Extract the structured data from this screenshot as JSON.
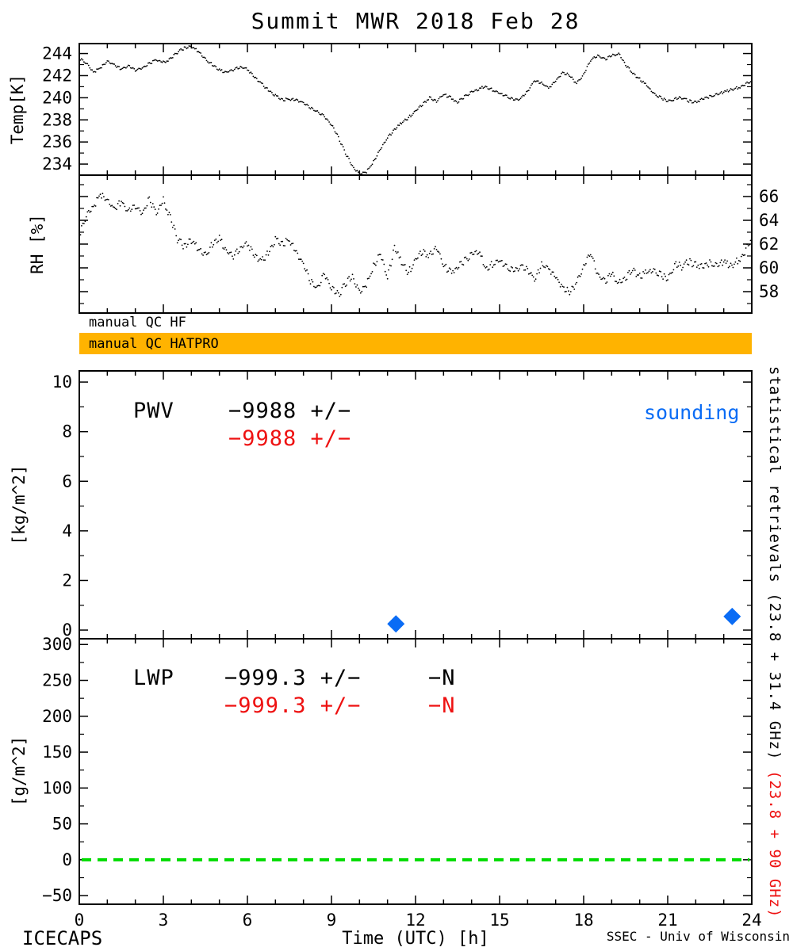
{
  "title": "Summit MWR 2018 Feb 28",
  "colors": {
    "accent_orange": "#FFB300",
    "sounding_blue": "#0A6CF5",
    "stat_red": "#EE1111",
    "zero_green": "#00DC00"
  },
  "qc": {
    "hf_label": "manual QC HF",
    "hatpro_label": "manual QC HATPRO"
  },
  "annotations": {
    "pwv_label": "PWV",
    "pwv_stat_black": "−9988 +/−",
    "pwv_stat_red": "−9988 +/−",
    "sounding_label": "sounding",
    "lwp_label": "LWP",
    "lwp_stat_black": "−999.3 +/−",
    "lwp_n_black": "−N",
    "lwp_stat_red": "−999.3 +/−",
    "lwp_n_red": "−N"
  },
  "right_margin": {
    "black": "statistical retrievals (23.8 + 31.4 GHz)",
    "red": " (23.8 + 90 GHz)"
  },
  "footer": {
    "left": "ICECAPS",
    "right": "SSEC - Univ of Wisconsin"
  },
  "x_axis": {
    "label": "Time (UTC) [h]",
    "vals": [
      0,
      3,
      6,
      9,
      12,
      15,
      18,
      21,
      24
    ],
    "labels": [
      "0",
      "3",
      "6",
      "9",
      "12",
      "15",
      "18",
      "21",
      "24"
    ]
  },
  "chart_data": [
    {
      "type": "line",
      "name": "temperature",
      "ylabel": "Temp[K]",
      "ytick_vals": [
        234,
        236,
        238,
        240,
        242,
        244
      ],
      "ytick_labels": [
        "234",
        "236",
        "238",
        "240",
        "242",
        "244"
      ],
      "ylim": [
        233.0,
        244.9
      ],
      "xlim": [
        0,
        24
      ],
      "x": [
        0,
        0.25,
        0.5,
        0.75,
        1,
        1.25,
        1.5,
        1.75,
        2,
        2.25,
        2.5,
        2.75,
        3,
        3.25,
        3.5,
        3.75,
        4,
        4.25,
        4.5,
        4.75,
        5,
        5.25,
        5.5,
        5.75,
        6,
        6.25,
        6.5,
        6.75,
        7,
        7.25,
        7.5,
        7.75,
        8,
        8.25,
        8.5,
        8.75,
        9,
        9.25,
        9.5,
        9.75,
        10,
        10.25,
        10.5,
        10.75,
        11,
        11.25,
        11.5,
        11.75,
        12,
        12.25,
        12.5,
        12.75,
        13,
        13.25,
        13.5,
        13.75,
        14,
        14.25,
        14.5,
        14.75,
        15,
        15.25,
        15.5,
        15.75,
        16,
        16.25,
        16.5,
        16.75,
        17,
        17.25,
        17.5,
        17.75,
        18,
        18.25,
        18.5,
        18.75,
        19,
        19.25,
        19.5,
        19.75,
        20,
        20.25,
        20.5,
        20.75,
        21,
        21.25,
        21.5,
        21.75,
        22,
        22.25,
        22.5,
        22.75,
        23,
        23.25,
        23.5,
        23.75,
        24
      ],
      "y": [
        243.6,
        243.1,
        242.3,
        242.7,
        243.3,
        243.0,
        242.6,
        242.9,
        242.5,
        242.7,
        243.1,
        243.4,
        243.2,
        243.5,
        244.1,
        244.5,
        244.6,
        244.2,
        243.5,
        243.0,
        242.5,
        242.3,
        242.5,
        242.8,
        242.6,
        241.9,
        241.3,
        240.7,
        240.2,
        239.8,
        239.9,
        239.8,
        239.5,
        239.1,
        238.7,
        238.3,
        237.6,
        236.4,
        235.0,
        233.8,
        233.1,
        233.3,
        234.2,
        235.4,
        236.4,
        237.1,
        237.7,
        238.2,
        238.8,
        239.4,
        240.0,
        239.7,
        240.3,
        240.0,
        239.6,
        240.1,
        240.5,
        240.8,
        241.0,
        240.7,
        240.4,
        240.1,
        239.8,
        239.9,
        240.6,
        241.6,
        241.3,
        240.9,
        241.5,
        242.3,
        242.0,
        241.3,
        242.1,
        243.4,
        243.8,
        243.5,
        243.8,
        244.0,
        243.0,
        242.2,
        241.7,
        241.1,
        240.4,
        240.0,
        239.7,
        239.9,
        240.0,
        239.7,
        239.6,
        239.9,
        240.1,
        240.3,
        240.5,
        240.7,
        240.9,
        241.2,
        241.5
      ]
    },
    {
      "type": "line",
      "name": "relative-humidity",
      "ylabel": "RH [%]",
      "ytick_vals": [
        58,
        60,
        62,
        64,
        66
      ],
      "ytick_labels": [
        "58",
        "60",
        "62",
        "64",
        "66"
      ],
      "ylim": [
        56.2,
        67.8
      ],
      "xlim": [
        0,
        24
      ],
      "x": [
        0,
        0.25,
        0.5,
        0.75,
        1,
        1.25,
        1.5,
        1.75,
        2,
        2.25,
        2.5,
        2.75,
        3,
        3.25,
        3.5,
        3.75,
        4,
        4.25,
        4.5,
        4.75,
        5,
        5.25,
        5.5,
        5.75,
        6,
        6.25,
        6.5,
        6.75,
        7,
        7.25,
        7.5,
        7.75,
        8,
        8.25,
        8.5,
        8.75,
        9,
        9.25,
        9.5,
        9.75,
        10,
        10.25,
        10.5,
        10.75,
        11,
        11.25,
        11.5,
        11.75,
        12,
        12.25,
        12.5,
        12.75,
        13,
        13.25,
        13.5,
        13.75,
        14,
        14.25,
        14.5,
        14.75,
        15,
        15.25,
        15.5,
        15.75,
        16,
        16.25,
        16.5,
        16.75,
        17,
        17.25,
        17.5,
        17.75,
        18,
        18.25,
        18.5,
        18.75,
        19,
        19.25,
        19.5,
        19.75,
        20,
        20.25,
        20.5,
        20.75,
        21,
        21.25,
        21.5,
        21.75,
        22,
        22.25,
        22.5,
        22.75,
        23,
        23.25,
        23.5,
        23.75,
        24
      ],
      "y": [
        62.8,
        64.3,
        65.1,
        66.2,
        65.7,
        65.0,
        65.6,
        64.8,
        65.2,
        64.6,
        65.8,
        64.5,
        65.7,
        64.2,
        62.4,
        61.8,
        62.3,
        61.6,
        61.1,
        62.0,
        62.5,
        61.4,
        60.9,
        61.7,
        62.1,
        61.1,
        60.6,
        61.3,
        62.4,
        62.0,
        62.4,
        61.3,
        60.2,
        58.9,
        58.2,
        59.5,
        58.4,
        57.7,
        58.7,
        59.3,
        57.9,
        58.6,
        60.1,
        61.3,
        59.2,
        61.7,
        60.4,
        59.6,
        60.7,
        61.4,
        61.0,
        61.8,
        60.2,
        59.6,
        60.1,
        60.6,
        61.1,
        61.5,
        59.9,
        60.3,
        60.6,
        60.0,
        59.7,
        60.1,
        59.9,
        59.1,
        60.2,
        60.0,
        59.2,
        58.4,
        57.9,
        58.8,
        60.1,
        61.3,
        59.4,
        58.9,
        59.5,
        58.7,
        59.2,
        59.8,
        59.3,
        59.6,
        59.8,
        59.4,
        59.1,
        60.3,
        60.1,
        60.5,
        60.3,
        60.1,
        60.4,
        60.2,
        60.5,
        60.1,
        60.6,
        61.3,
        62.5
      ]
    },
    {
      "type": "scatter",
      "name": "pwv",
      "ylabel": "[kg/m^2]",
      "ytick_vals": [
        0,
        2,
        4,
        6,
        8,
        10
      ],
      "ytick_labels": [
        "0",
        "2",
        "4",
        "6",
        "8",
        "10"
      ],
      "ylim": [
        -0.35,
        10.45
      ],
      "xlim": [
        0,
        24
      ],
      "series": [
        {
          "name": "sounding",
          "marker": "diamond",
          "color": "#0A6CF5",
          "x": [
            11.3,
            23.3
          ],
          "y": [
            0.25,
            0.55
          ]
        }
      ]
    },
    {
      "type": "line",
      "name": "lwp",
      "ylabel": "[g/m^2]",
      "ytick_vals": [
        -50,
        0,
        50,
        100,
        150,
        200,
        250,
        300
      ],
      "ytick_labels": [
        "−50",
        "0",
        "50",
        "100",
        "150",
        "200",
        "250",
        "300"
      ],
      "ylim": [
        -62,
        308
      ],
      "xlim": [
        0,
        24
      ],
      "zero_line": 0,
      "x": [],
      "y": []
    }
  ]
}
